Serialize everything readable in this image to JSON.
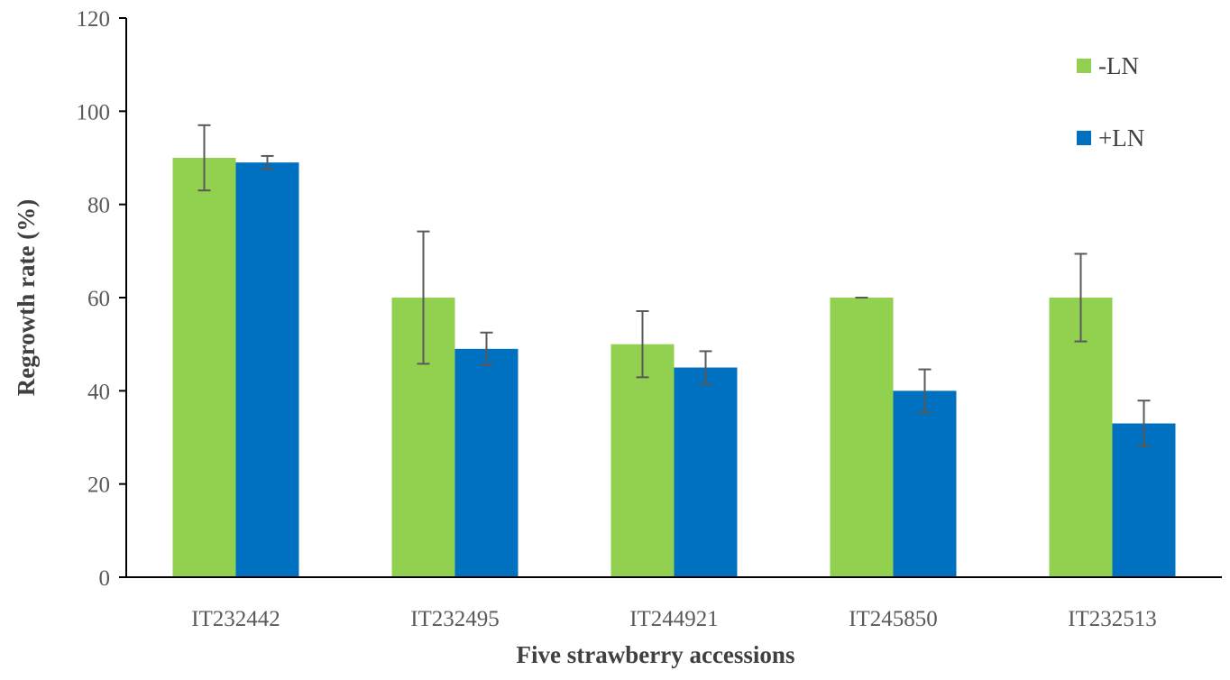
{
  "chart_data": {
    "type": "bar",
    "title": "",
    "xlabel": "Five strawberry accessions",
    "ylabel": "Regrowth rate (%)",
    "ylim": [
      0,
      120
    ],
    "yticks": [
      0,
      20,
      40,
      60,
      80,
      100,
      120
    ],
    "categories": [
      "IT232442",
      "IT232495",
      "IT244921",
      "IT245850",
      "IT232513"
    ],
    "series": [
      {
        "name": "-LN",
        "color": "#92D050",
        "values": [
          90,
          60,
          50,
          60,
          60
        ],
        "errors": [
          7,
          14.2,
          7.1,
          0,
          9.4
        ]
      },
      {
        "name": "+LN",
        "color": "#0070C0",
        "values": [
          89,
          49,
          45,
          40,
          33
        ],
        "errors": [
          1.4,
          3.5,
          3.5,
          4.6,
          4.9
        ]
      }
    ],
    "legend_position": "top-right",
    "grid": false
  }
}
